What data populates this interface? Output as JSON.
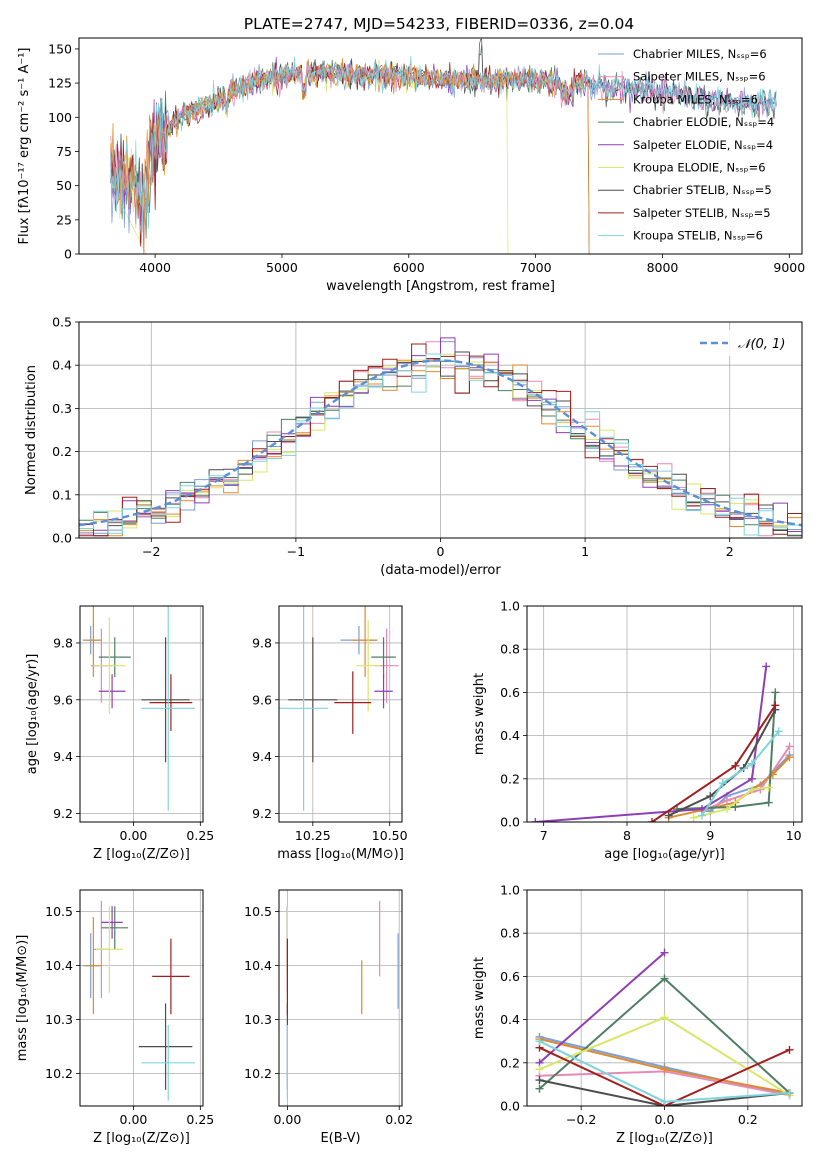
{
  "colors": [
    "#7b9fd8",
    "#e689b6",
    "#e08a2c",
    "#4f7f63",
    "#8e3fb3",
    "#d9e66a",
    "#4d4d4d",
    "#a01e1e",
    "#7fd4dc"
  ],
  "chart_data": [
    {
      "id": "spectrum",
      "type": "line",
      "title": "PLATE=2747, MJD=54233, FIBERID=0336, z=0.04",
      "xlabel": "wavelength [Angstrom, rest frame]",
      "ylabel": "Flux [fλ10⁻¹⁷ erg cm⁻² s⁻¹ A⁻¹]",
      "xlim": [
        3400,
        9100
      ],
      "ylim": [
        0,
        158
      ],
      "xticks": [
        4000,
        5000,
        6000,
        7000,
        8000,
        9000
      ],
      "yticks": [
        0,
        25,
        50,
        75,
        100,
        125,
        150
      ],
      "legend_position": "top-right",
      "legend": [
        "Chabrier MILES, Nₛₛₚ=6",
        "Salpeter MILES, Nₛₛₚ=6",
        "Kroupa MILES, Nₛₛₚ=6",
        "Chabrier ELODIE, Nₛₛₚ=4",
        "Salpeter ELODIE, Nₛₛₚ=4",
        "Kroupa ELODIE, Nₛₛₚ=6",
        "Chabrier STELIB, Nₛₛₚ=5",
        "Salpeter STELIB, Nₛₛₚ=5",
        "Kroupa STELIB, Nₛₛₚ=6"
      ],
      "continuum": [
        [
          3650,
          58
        ],
        [
          3800,
          52
        ],
        [
          3900,
          44
        ],
        [
          4000,
          85
        ],
        [
          4100,
          92
        ],
        [
          4200,
          100
        ],
        [
          4400,
          108
        ],
        [
          4600,
          118
        ],
        [
          4800,
          127
        ],
        [
          5000,
          130
        ],
        [
          5200,
          133
        ],
        [
          5400,
          132
        ],
        [
          5600,
          130
        ],
        [
          5800,
          131
        ],
        [
          6000,
          130
        ],
        [
          6200,
          128
        ],
        [
          6400,
          128
        ],
        [
          6600,
          126
        ],
        [
          6800,
          128
        ],
        [
          7000,
          128
        ],
        [
          7200,
          125
        ],
        [
          7400,
          125
        ],
        [
          7600,
          120
        ],
        [
          7800,
          122
        ],
        [
          8000,
          118
        ],
        [
          8200,
          115
        ],
        [
          8400,
          112
        ],
        [
          8600,
          110
        ],
        [
          8800,
          110
        ],
        [
          8900,
          112
        ]
      ],
      "series_ranges": [
        [
          3650,
          8900
        ],
        [
          3650,
          8900
        ],
        [
          3650,
          7420
        ],
        [
          3650,
          8900
        ],
        [
          3650,
          8900
        ],
        [
          3650,
          6780
        ],
        [
          3650,
          8900
        ],
        [
          3650,
          7420
        ],
        [
          3650,
          8900
        ]
      ]
    },
    {
      "id": "residuals",
      "type": "histogram",
      "xlabel": "(data-model)/error",
      "ylabel": "Normed distribution",
      "xlim": [
        -2.5,
        2.5
      ],
      "ylim": [
        0,
        0.5
      ],
      "xticks": [
        -2,
        -1,
        0,
        1,
        2
      ],
      "yticks": [
        0.0,
        0.1,
        0.2,
        0.3,
        0.4,
        0.5
      ],
      "grid": true,
      "reference_legend": "𝒩(0, 1)",
      "legend_position": "top-right",
      "bin_width": 0.1
    },
    {
      "id": "age-vs-z",
      "type": "errorbar",
      "xlabel": "Z [log₁₀(Z/Z⊙)]",
      "ylabel": "age  [log₁₀(age/yr)]",
      "xlim": [
        -0.2,
        0.26
      ],
      "ylim": [
        9.17,
        9.93
      ],
      "xticks": [
        0.0,
        0.25
      ],
      "yticks": [
        9.2,
        9.4,
        9.6,
        9.8
      ],
      "grid": true,
      "points": [
        {
          "x": -0.16,
          "y": 9.81,
          "xerr": 0.03,
          "yerr": 0.05
        },
        {
          "x": -0.12,
          "y": 9.72,
          "xerr": 0.04,
          "yerr": 0.13
        },
        {
          "x": -0.15,
          "y": 9.81,
          "xerr": 0.03,
          "yerr": 0.13
        },
        {
          "x": -0.07,
          "y": 9.75,
          "xerr": 0.06,
          "yerr": 0.07
        },
        {
          "x": -0.08,
          "y": 9.63,
          "xerr": 0.05,
          "yerr": 0.06
        },
        {
          "x": -0.09,
          "y": 9.72,
          "xerr": 0.06,
          "yerr": 0.17
        },
        {
          "x": 0.12,
          "y": 9.6,
          "xerr": 0.09,
          "yerr": 0.22
        },
        {
          "x": 0.14,
          "y": 9.59,
          "xerr": 0.08,
          "yerr": 0.1
        },
        {
          "x": 0.13,
          "y": 9.57,
          "xerr": 0.1,
          "yerr": 0.36
        }
      ]
    },
    {
      "id": "age-vs-mass",
      "type": "errorbar",
      "xlabel": "mass [log₁₀(M/M⊙)]",
      "ylabel": "",
      "xlim": [
        10.14,
        10.54
      ],
      "ylim": [
        9.17,
        9.93
      ],
      "xticks": [
        10.25,
        10.5
      ],
      "yticks": [
        9.2,
        9.4,
        9.6,
        9.8
      ],
      "grid": true,
      "points": [
        {
          "x": 10.4,
          "y": 9.81,
          "xerr": 0.06,
          "yerr": 0.05
        },
        {
          "x": 10.49,
          "y": 9.72,
          "xerr": 0.04,
          "yerr": 0.13
        },
        {
          "x": 10.42,
          "y": 9.81,
          "xerr": 0.04,
          "yerr": 0.13
        },
        {
          "x": 10.48,
          "y": 9.75,
          "xerr": 0.04,
          "yerr": 0.07
        },
        {
          "x": 10.48,
          "y": 9.63,
          "xerr": 0.03,
          "yerr": 0.06
        },
        {
          "x": 10.43,
          "y": 9.72,
          "xerr": 0.04,
          "yerr": 0.16
        },
        {
          "x": 10.25,
          "y": 9.6,
          "xerr": 0.08,
          "yerr": 0.22
        },
        {
          "x": 10.38,
          "y": 9.59,
          "xerr": 0.06,
          "yerr": 0.11
        },
        {
          "x": 10.22,
          "y": 9.57,
          "xerr": 0.08,
          "yerr": 0.36
        }
      ]
    },
    {
      "id": "weight-vs-age",
      "type": "line",
      "xlabel": "age  [log₁₀(age/yr)]",
      "ylabel": "mass weight",
      "xlim": [
        6.8,
        10.1
      ],
      "ylim": [
        0,
        1.0
      ],
      "xticks": [
        7,
        8,
        9,
        10
      ],
      "yticks": [
        0.0,
        0.2,
        0.4,
        0.6,
        0.8,
        1.0
      ],
      "grid": true,
      "series": [
        {
          "x": [
            8.6,
            9.0,
            9.2,
            9.6,
            9.95
          ],
          "y": [
            0.06,
            0.05,
            0.12,
            0.17,
            0.31
          ]
        },
        {
          "x": [
            8.9,
            9.2,
            9.6,
            9.95
          ],
          "y": [
            0.05,
            0.1,
            0.15,
            0.35
          ]
        },
        {
          "x": [
            8.5,
            9.3,
            9.75,
            9.95
          ],
          "y": [
            0.02,
            0.09,
            0.22,
            0.3
          ]
        },
        {
          "x": [
            8.6,
            9.3,
            9.7,
            9.78
          ],
          "y": [
            0.06,
            0.07,
            0.09,
            0.6
          ]
        },
        {
          "x": 6.9,
          "y": 0
        },
        {
          "x": [
            8.8,
            9.2,
            9.5,
            9.7
          ],
          "y": [
            0.02,
            0.06,
            0.15,
            0.16
          ]
        },
        {
          "x": [
            8.5,
            9.0,
            9.4,
            9.78
          ],
          "y": [
            0.03,
            0.12,
            0.25,
            0.52
          ]
        },
        {
          "x": [
            8.3,
            9.3,
            9.78
          ],
          "y": [
            0.0,
            0.26,
            0.54
          ]
        },
        {
          "x": [
            8.9,
            9.15,
            9.5,
            9.82
          ],
          "y": [
            0.03,
            0.18,
            0.27,
            0.42
          ]
        }
      ],
      "series_purple": {
        "x": [
          6.9,
          8.9,
          9.5,
          9.67
        ],
        "y": [
          0.0,
          0.06,
          0.2,
          0.72
        ]
      }
    },
    {
      "id": "mass-vs-z",
      "type": "errorbar",
      "xlabel": "Z [log₁₀(Z/Z⊙)]",
      "ylabel": "mass [log₁₀(M/M⊙)]",
      "xlim": [
        -0.2,
        0.26
      ],
      "ylim": [
        10.14,
        10.54
      ],
      "xticks": [
        0.0,
        0.25
      ],
      "yticks": [
        10.2,
        10.3,
        10.4,
        10.5
      ],
      "grid": true,
      "points": [
        {
          "x": -0.16,
          "y": 10.4,
          "xerr": 0.03,
          "yerr": 0.06
        },
        {
          "x": -0.12,
          "y": 10.43,
          "xerr": 0.03,
          "yerr": 0.09
        },
        {
          "x": -0.15,
          "y": 10.4,
          "xerr": 0.03,
          "yerr": 0.09
        },
        {
          "x": -0.07,
          "y": 10.47,
          "xerr": 0.05,
          "yerr": 0.04
        },
        {
          "x": -0.08,
          "y": 10.48,
          "xerr": 0.04,
          "yerr": 0.03
        },
        {
          "x": -0.09,
          "y": 10.43,
          "xerr": 0.05,
          "yerr": 0.08
        },
        {
          "x": 0.12,
          "y": 10.25,
          "xerr": 0.1,
          "yerr": 0.08
        },
        {
          "x": 0.14,
          "y": 10.38,
          "xerr": 0.07,
          "yerr": 0.07
        },
        {
          "x": 0.13,
          "y": 10.22,
          "xerr": 0.1,
          "yerr": 0.07
        }
      ]
    },
    {
      "id": "mass-vs-ebv",
      "type": "errorbar",
      "xlabel": "E(B-V)",
      "ylabel": "",
      "xlim": [
        -0.0015,
        0.0205
      ],
      "ylim": [
        10.14,
        10.54
      ],
      "xticks": [
        0.0,
        0.02
      ],
      "yticks": [
        10.2,
        10.3,
        10.4,
        10.5
      ],
      "grid": true,
      "points": [
        {
          "x": 0.0198,
          "y": 10.39,
          "xerr": 0,
          "yerr": 0.07
        },
        {
          "x": 0.0165,
          "y": 10.45,
          "xerr": 0,
          "yerr": 0.07
        },
        {
          "x": 0.0133,
          "y": 10.36,
          "xerr": 0,
          "yerr": 0.05
        },
        {
          "x": 0.0,
          "y": 10.45,
          "xerr": 0,
          "yerr": 0.06
        },
        {
          "x": 0.0,
          "y": 10.43,
          "xerr": 0,
          "yerr": 0.08
        },
        {
          "x": 0.0,
          "y": 10.43,
          "xerr": 0,
          "yerr": 0.08
        },
        {
          "x": 0.0,
          "y": 10.25,
          "xerr": 0,
          "yerr": 0.08
        },
        {
          "x": 0.0,
          "y": 10.38,
          "xerr": 0,
          "yerr": 0.07
        },
        {
          "x": 0.0,
          "y": 10.22,
          "xerr": 0,
          "yerr": 0.07
        }
      ]
    },
    {
      "id": "weight-vs-z",
      "type": "line",
      "xlabel": "Z [log₁₀(Z/Z⊙)]",
      "ylabel": "mass weight",
      "xlim": [
        -0.33,
        0.33
      ],
      "ylim": [
        0,
        1.0
      ],
      "xticks": [
        -0.2,
        0.0,
        0.2
      ],
      "yticks": [
        0.0,
        0.2,
        0.4,
        0.6,
        0.8,
        1.0
      ],
      "grid": true,
      "series": [
        {
          "x": [
            -0.3,
            0.0,
            0.3
          ],
          "y": [
            0.32,
            0.18,
            0.05
          ]
        },
        {
          "x": [
            -0.3,
            0.0,
            0.3
          ],
          "y": [
            0.14,
            0.16,
            0.05
          ]
        },
        {
          "x": [
            -0.3,
            0.0,
            0.3
          ],
          "y": [
            0.31,
            0.17,
            0.06
          ]
        },
        {
          "x": [
            -0.3,
            0.0,
            0.3
          ],
          "y": [
            0.08,
            0.59,
            0.06
          ]
        },
        {
          "x": [
            -0.3,
            0.0
          ],
          "y": [
            0.2,
            0.71
          ]
        },
        {
          "x": [
            -0.3,
            0.0,
            0.3
          ],
          "y": [
            0.17,
            0.41,
            0.05
          ]
        },
        {
          "x": [
            -0.3,
            0.0,
            0.3
          ],
          "y": [
            0.12,
            0.0,
            0.06
          ]
        },
        {
          "x": [
            -0.3,
            0.0,
            0.3
          ],
          "y": [
            0.27,
            0.0,
            0.26
          ]
        },
        {
          "x": [
            -0.3,
            0.0,
            0.3
          ],
          "y": [
            0.3,
            0.02,
            0.06
          ]
        }
      ]
    }
  ]
}
